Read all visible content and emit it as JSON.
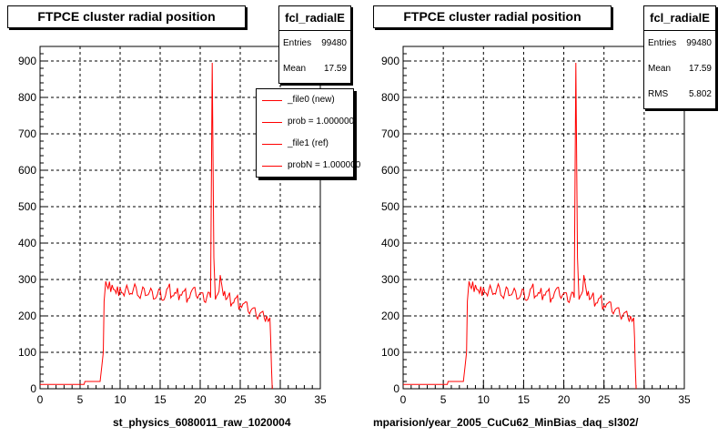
{
  "panels": [
    {
      "title": "FTPCE cluster radial position",
      "stats": {
        "name": "fcl_radialE",
        "rows": [
          {
            "label": "Entries",
            "value": "99480"
          },
          {
            "label": "Mean",
            "value": "17.59"
          }
        ]
      },
      "legend": [
        {
          "label": "_file0 (new)"
        },
        {
          "label": "prob = 1.000000"
        },
        {
          "label": "_file1 (ref)"
        },
        {
          "label": "probN = 1.000000"
        }
      ],
      "file_label": "st_physics_6080011_raw_1020004"
    },
    {
      "title": "FTPCE cluster radial position",
      "stats": {
        "name": "fcl_radialE",
        "rows": [
          {
            "label": "Entries",
            "value": "99480"
          },
          {
            "label": "Mean",
            "value": "17.59"
          },
          {
            "label": "RMS",
            "value": "5.802"
          }
        ]
      },
      "file_label": "mparision/year_2005_CuCu62_MinBias_daq_sl302/"
    }
  ],
  "colors": {
    "line": "#ff0000",
    "grid": "#000000"
  },
  "chart_data": [
    {
      "type": "line",
      "title": "FTPCE cluster radial position",
      "xlim": [
        0,
        35
      ],
      "ylim": [
        0,
        940
      ],
      "xticks": [
        0,
        5,
        10,
        15,
        20,
        25,
        30,
        35
      ],
      "yticks": [
        0,
        100,
        200,
        300,
        400,
        500,
        600,
        700,
        800,
        900
      ],
      "grid": true,
      "legend_position": "top-right",
      "series": [
        {
          "name": "_file0 (new)",
          "x": [
            0,
            5.5,
            5.6,
            7.5,
            7.9,
            8.0,
            8.2,
            8.5,
            9,
            9.5,
            10,
            10.5,
            11,
            11.5,
            12,
            12.5,
            13,
            13.5,
            14,
            14.5,
            15,
            15.5,
            16,
            16.5,
            17,
            17.5,
            18,
            18.5,
            19,
            19.5,
            20,
            20.5,
            21,
            21.3,
            21.5,
            21.7,
            21.9,
            22.2,
            22.5,
            22.9,
            23.2,
            23.5,
            24,
            24.5,
            25,
            25.5,
            26,
            26.5,
            27,
            27.5,
            28,
            28.3,
            28.5,
            28.7,
            28.8,
            28.9,
            29.0
          ],
          "y": [
            12,
            12,
            20,
            20,
            100,
            240,
            295,
            275,
            285,
            262,
            278,
            255,
            272,
            260,
            278,
            248,
            275,
            258,
            268,
            250,
            272,
            245,
            278,
            255,
            262,
            258,
            268,
            248,
            272,
            255,
            262,
            240,
            265,
            250,
            895,
            360,
            245,
            260,
            312,
            255,
            245,
            255,
            235,
            250,
            228,
            235,
            212,
            220,
            200,
            208,
            195,
            200,
            185,
            195,
            140,
            60,
            0
          ]
        }
      ]
    },
    {
      "type": "line",
      "title": "FTPCE cluster radial position",
      "xlim": [
        0,
        35
      ],
      "ylim": [
        0,
        940
      ],
      "xticks": [
        0,
        5,
        10,
        15,
        20,
        25,
        30,
        35
      ],
      "yticks": [
        0,
        100,
        200,
        300,
        400,
        500,
        600,
        700,
        800,
        900
      ],
      "grid": true,
      "series": [
        {
          "x": [
            0,
            5.5,
            5.6,
            7.5,
            7.9,
            8.0,
            8.2,
            8.5,
            9,
            9.5,
            10,
            10.5,
            11,
            11.5,
            12,
            12.5,
            13,
            13.5,
            14,
            14.5,
            15,
            15.5,
            16,
            16.5,
            17,
            17.5,
            18,
            18.5,
            19,
            19.5,
            20,
            20.5,
            21,
            21.3,
            21.5,
            21.7,
            21.9,
            22.2,
            22.5,
            22.9,
            23.2,
            23.5,
            24,
            24.5,
            25,
            25.5,
            26,
            26.5,
            27,
            27.5,
            28,
            28.3,
            28.5,
            28.7,
            28.8,
            28.9,
            29.0
          ],
          "y": [
            12,
            12,
            20,
            20,
            100,
            240,
            295,
            275,
            285,
            262,
            278,
            255,
            272,
            260,
            278,
            248,
            275,
            258,
            268,
            250,
            272,
            245,
            278,
            255,
            262,
            258,
            268,
            248,
            272,
            255,
            262,
            240,
            265,
            250,
            895,
            360,
            245,
            260,
            312,
            255,
            245,
            255,
            235,
            250,
            228,
            235,
            212,
            220,
            200,
            208,
            195,
            200,
            185,
            195,
            140,
            60,
            0
          ]
        }
      ]
    }
  ]
}
